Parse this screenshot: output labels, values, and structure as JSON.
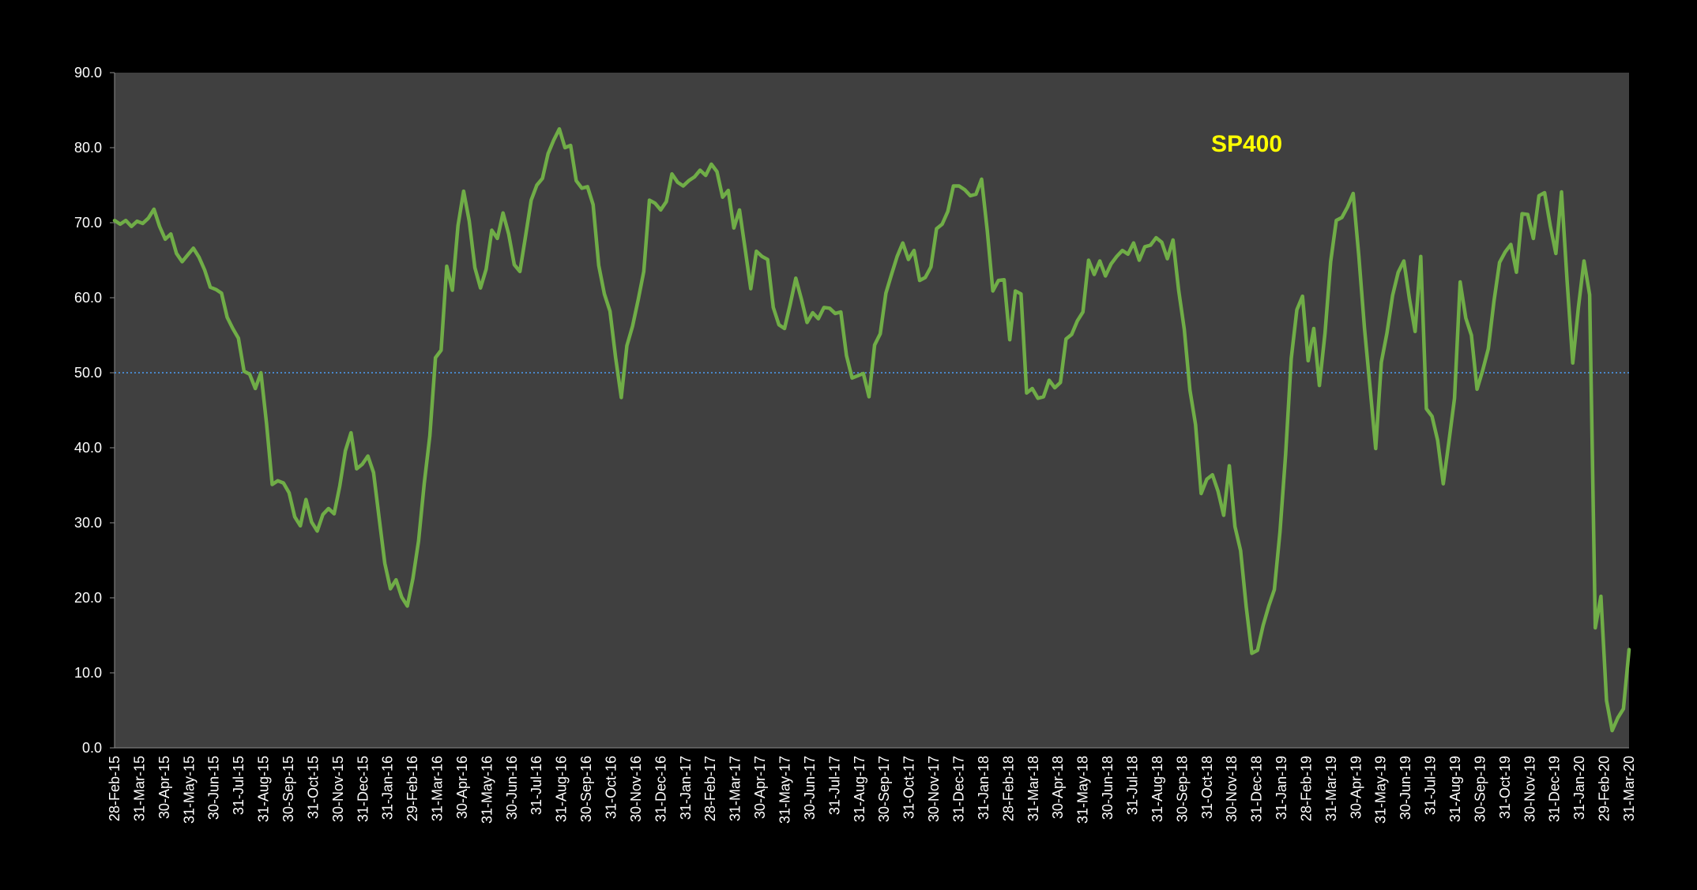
{
  "chart_data": {
    "type": "line",
    "title": "SP400",
    "xlabel": "",
    "ylabel": "",
    "ylim": [
      0,
      90
    ],
    "yticks": [
      "0.0",
      "10.0",
      "20.0",
      "30.0",
      "40.0",
      "50.0",
      "60.0",
      "70.0",
      "80.0",
      "90.0"
    ],
    "xticks": [
      "28-Feb-15",
      "31-Mar-15",
      "30-Apr-15",
      "31-May-15",
      "30-Jun-15",
      "31-Jul-15",
      "31-Aug-15",
      "30-Sep-15",
      "31-Oct-15",
      "30-Nov-15",
      "31-Dec-15",
      "31-Jan-16",
      "29-Feb-16",
      "31-Mar-16",
      "30-Apr-16",
      "31-May-16",
      "30-Jun-16",
      "31-Jul-16",
      "31-Aug-16",
      "30-Sep-16",
      "31-Oct-16",
      "30-Nov-16",
      "31-Dec-16",
      "31-Jan-17",
      "28-Feb-17",
      "31-Mar-17",
      "30-Apr-17",
      "31-May-17",
      "30-Jun-17",
      "31-Jul-17",
      "31-Aug-17",
      "30-Sep-17",
      "31-Oct-17",
      "30-Nov-17",
      "31-Dec-17",
      "31-Jan-18",
      "28-Feb-18",
      "31-Mar-18",
      "30-Apr-18",
      "31-May-18",
      "30-Jun-18",
      "31-Jul-18",
      "31-Aug-18",
      "30-Sep-18",
      "31-Oct-18",
      "30-Nov-18",
      "31-Dec-18",
      "31-Jan-19",
      "28-Feb-19",
      "31-Mar-19",
      "30-Apr-19",
      "31-May-19",
      "30-Jun-19",
      "31-Jul-19",
      "31-Aug-19",
      "30-Sep-19",
      "31-Oct-19",
      "30-Nov-19",
      "31-Dec-19",
      "31-Jan-20",
      "29-Feb-20",
      "31-Mar-20"
    ],
    "reference_line": {
      "value": 50,
      "style": "dotted",
      "color": "#4a86c8"
    },
    "grid": false,
    "legend": "none",
    "colors": {
      "background": "#000000",
      "plot_area": "#404040",
      "series": "#70ad47",
      "title": "#ffff00",
      "axis_text": "#ffffff"
    },
    "series": [
      {
        "values": [
          70.3,
          69.8,
          70.3,
          69.5,
          70.2,
          69.9,
          70.6,
          71.8,
          69.5,
          67.8,
          68.5,
          65.9,
          64.8,
          65.7,
          66.6,
          65.4,
          63.7,
          61.4,
          61.1,
          60.6,
          57.4,
          55.9,
          54.6,
          50.2,
          49.8,
          47.9,
          50.0,
          43.2,
          35.1,
          35.6,
          35.3,
          34.0,
          30.8,
          29.6,
          33.1,
          30.1,
          28.9,
          31.1,
          31.9,
          31.2,
          34.9,
          39.6,
          42.0,
          37.2,
          37.8,
          38.9,
          36.7,
          30.6,
          24.6,
          21.2,
          22.4,
          20.1,
          18.9,
          22.6,
          27.6,
          35.2,
          41.6,
          52.0,
          53.0,
          64.2,
          61.0,
          69.6,
          74.2,
          70.2,
          64.0,
          61.3,
          63.8,
          69.0,
          67.9,
          71.3,
          68.5,
          64.4,
          63.5,
          68.2,
          73.0,
          75.0,
          75.9,
          79.2,
          81.0,
          82.5,
          80.0,
          80.3,
          75.6,
          74.6,
          74.8,
          72.4,
          64.3,
          60.5,
          58.2,
          52.0,
          46.7,
          53.6,
          56.2,
          59.7,
          63.5,
          73.0,
          72.6,
          71.7,
          72.8,
          76.5,
          75.4,
          74.9,
          75.6,
          76.1,
          77.0,
          76.3,
          77.8,
          76.8,
          73.4,
          74.3,
          69.3,
          71.7,
          66.5,
          61.2,
          66.2,
          65.5,
          65.1,
          58.7,
          56.4,
          55.9,
          59.1,
          62.6,
          59.8,
          56.7,
          58.0,
          57.2,
          58.7,
          58.6,
          57.9,
          58.1,
          52.3,
          49.3,
          49.6,
          49.9,
          46.8,
          53.7,
          55.2,
          60.6,
          63.1,
          65.5,
          67.3,
          65.1,
          66.3,
          62.3,
          62.7,
          64.1,
          69.2,
          69.8,
          71.5,
          74.9,
          74.9,
          74.4,
          73.6,
          73.8,
          75.8,
          69.0,
          60.9,
          62.3,
          62.4,
          54.4,
          60.9,
          60.5,
          47.3,
          47.9,
          46.6,
          46.8,
          49.0,
          48.0,
          48.7,
          54.5,
          55.1,
          56.9,
          58.1,
          65.0,
          63.1,
          64.9,
          62.9,
          64.5,
          65.5,
          66.3,
          65.8,
          67.3,
          65.0,
          66.8,
          67.0,
          68.0,
          67.4,
          65.2,
          67.7,
          61.0,
          55.8,
          47.7,
          43.1,
          33.9,
          35.8,
          36.4,
          34.2,
          31.0,
          37.6,
          29.5,
          26.3,
          18.8,
          12.6,
          13.0,
          16.3,
          18.9,
          21.1,
          28.8,
          39.1,
          51.9,
          58.4,
          60.2,
          51.6,
          55.9,
          48.3,
          55.3,
          64.8,
          70.3,
          70.7,
          72.1,
          73.9,
          65.6,
          56.0,
          48.0,
          39.9,
          51.4,
          55.3,
          60.3,
          63.4,
          64.9,
          59.8,
          55.5,
          65.5,
          45.2,
          44.2,
          41.0,
          35.2,
          40.8,
          46.6,
          62.1,
          57.3,
          55.0,
          47.8,
          50.3,
          53.2,
          59.5,
          64.7,
          66.1,
          67.1,
          63.4,
          71.2,
          71.1,
          67.9,
          73.6,
          74.0,
          69.6,
          65.9,
          74.1,
          62.2,
          51.3,
          58.7,
          64.9,
          60.4,
          16.0,
          20.2,
          6.3,
          2.3,
          4.0,
          5.2,
          13.1
        ]
      }
    ]
  }
}
